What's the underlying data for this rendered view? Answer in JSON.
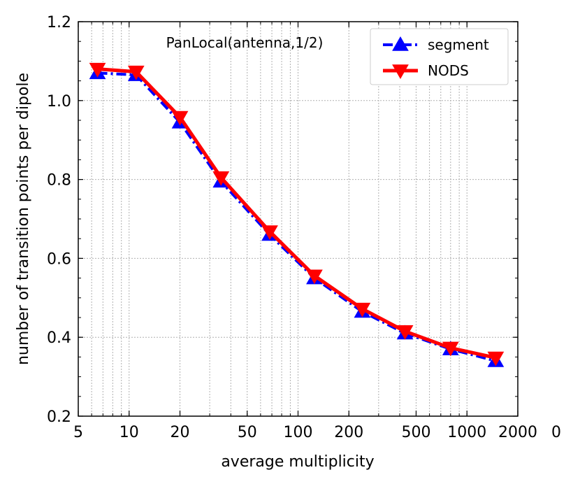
{
  "chart_data": {
    "type": "line",
    "title": "",
    "annotation": "PanLocal(antenna,1/2)",
    "xlabel": "average multiplicity",
    "ylabel": "number of transition points per dipole",
    "xscale": "log",
    "xlim": [
      5,
      2000
    ],
    "ylim": [
      0.2,
      1.2
    ],
    "xticks": [
      5,
      10,
      20,
      50,
      100,
      200,
      500,
      1000,
      2000
    ],
    "xtick_labels": [
      "5",
      "10",
      "20",
      "50",
      "100",
      "200",
      "500",
      "1000",
      "2000"
    ],
    "extra_tick_label": "0",
    "yticks": [
      0.2,
      0.4,
      0.6,
      0.8,
      1.0,
      1.2
    ],
    "ytick_labels": [
      "0.2",
      "0.4",
      "0.6",
      "0.8",
      "1.0",
      "1.2"
    ],
    "grid": true,
    "legend_position": "top-right",
    "series": [
      {
        "name": "segment",
        "color": "#0000ff",
        "line_style": "dash-dot",
        "marker": "triangle-up",
        "x": [
          6.5,
          11,
          20,
          35,
          68,
          125,
          240,
          430,
          800,
          1480
        ],
        "y": [
          1.07,
          1.065,
          0.945,
          0.795,
          0.66,
          0.55,
          0.465,
          0.41,
          0.37,
          0.34
        ]
      },
      {
        "name": "NODS",
        "color": "#ff0000",
        "line_style": "solid",
        "marker": "triangle-down",
        "x": [
          6.5,
          11,
          20,
          35,
          68,
          125,
          240,
          430,
          800,
          1480
        ],
        "y": [
          1.08,
          1.073,
          0.958,
          0.805,
          0.668,
          0.556,
          0.472,
          0.415,
          0.373,
          0.348
        ]
      }
    ]
  }
}
